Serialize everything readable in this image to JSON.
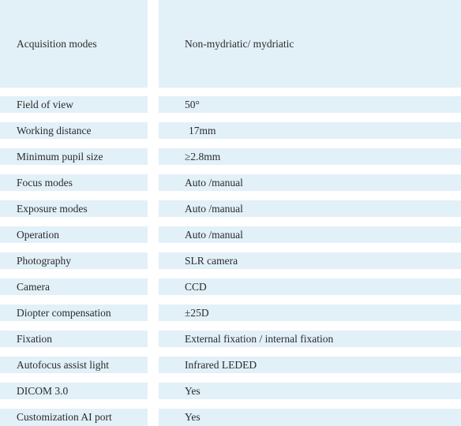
{
  "rows": [
    {
      "label": "Acquisition modes",
      "value": "Non-mydriatic/ mydriatic"
    },
    {
      "label": "Field of view",
      "value": "50°"
    },
    {
      "label": "Working distance",
      "value": "17mm"
    },
    {
      "label": "Minimum pupil size",
      "value": "≥2.8mm"
    },
    {
      "label": "Focus modes",
      "value": "Auto /manual"
    },
    {
      "label": "Exposure modes",
      "value": "Auto /manual"
    },
    {
      "label": "Operation",
      "value": "Auto /manual"
    },
    {
      "label": "Photography",
      "value": "SLR camera"
    },
    {
      "label": "Camera",
      "value": "CCD"
    },
    {
      "label": "Diopter compensation",
      "value": "±25D"
    },
    {
      "label": "Fixation",
      "value": "External fixation / internal fixation"
    },
    {
      "label": "Autofocus assist light",
      "value": "Infrared LEDED"
    },
    {
      "label": "DICOM 3.0",
      "value": "Yes"
    },
    {
      "label": "Customization AI port",
      "value": "Yes"
    }
  ]
}
